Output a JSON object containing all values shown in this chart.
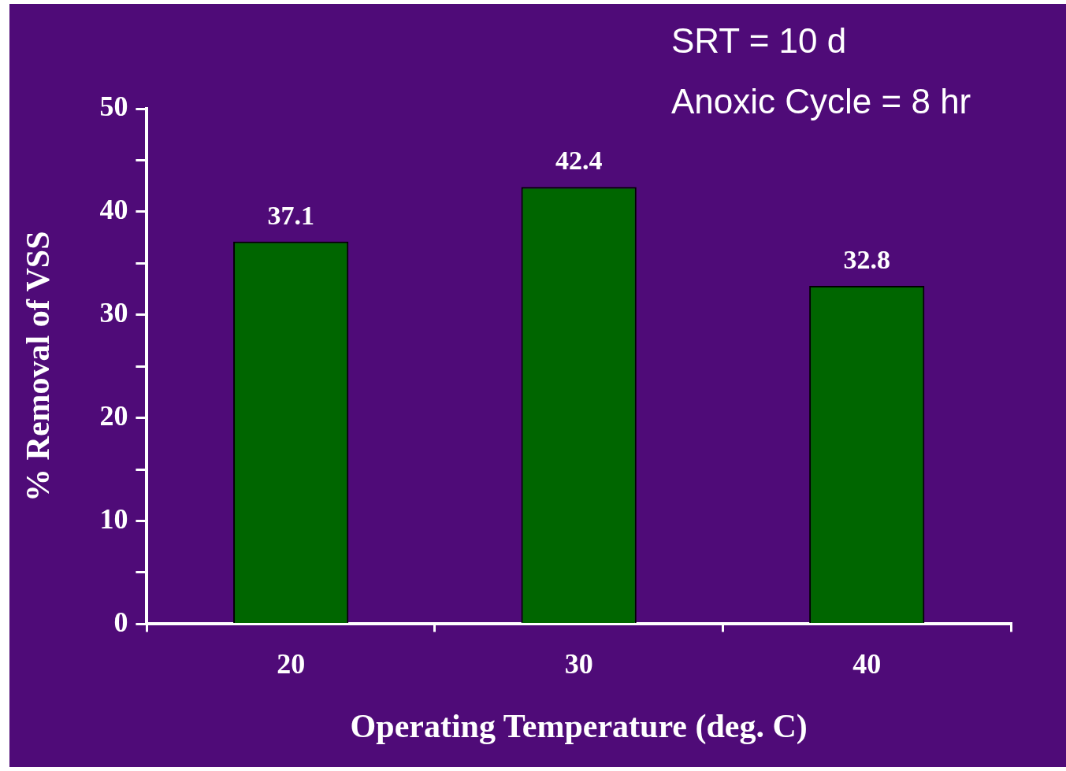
{
  "chart_data": {
    "type": "bar",
    "categories": [
      "20",
      "30",
      "40"
    ],
    "values": [
      37.1,
      42.4,
      32.8
    ],
    "color": "#006600",
    "ylim": [
      0,
      50
    ],
    "yticks": [
      0,
      {
        "value": 5,
        "label": null
      },
      10,
      {
        "value": 15,
        "label": null
      },
      20,
      {
        "value": 25,
        "label": null
      },
      30,
      {
        "value": 35,
        "label": null
      },
      40,
      {
        "value": 45,
        "label": null
      },
      50
    ],
    "xlabel": "Operating Temperature (deg. C)",
    "ylabel": "% Removal of VSS",
    "data_labels": true,
    "annotations": [
      "SRT = 10 d",
      "Anoxic Cycle = 8 hr"
    ]
  }
}
